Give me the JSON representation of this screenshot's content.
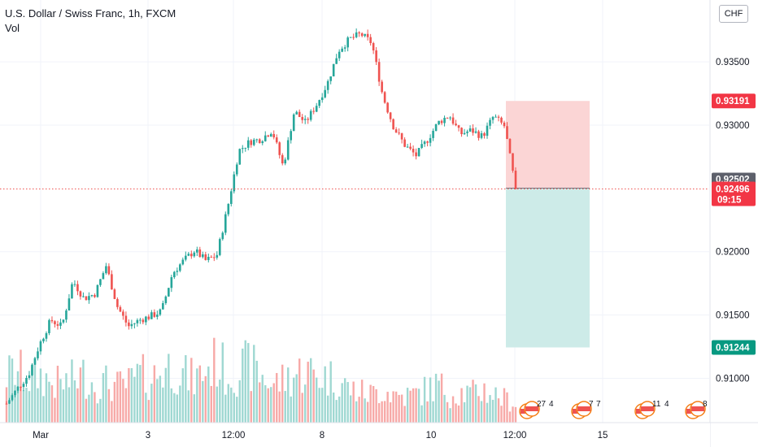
{
  "legend": {
    "title": "U.S. Dollar / Swiss Franc, 1h, FXCM",
    "volume_label": "Vol"
  },
  "currency_button": "CHF",
  "colors": {
    "up": "#26a69a",
    "down": "#ef5350",
    "vol_up": "#9fd8d2",
    "vol_down": "#f7a9a7",
    "stop_zone": "#fbd5d5",
    "target_zone": "#cdebe8",
    "stop_tag": "#f23645",
    "target_tag": "#089981",
    "entry_tag": "#5d606b",
    "grid": "#f0f3fa"
  },
  "chart_data": {
    "type": "candlestick",
    "symbol": "USDCHF",
    "timeframe": "1h",
    "x_tick_labels": [
      "Mar",
      "3",
      "12:00",
      "8",
      "10",
      "12:00",
      "15"
    ],
    "y_tick_labels": [
      "0.93500",
      "0.93000",
      "0.92000",
      "0.91500",
      "0.91000"
    ],
    "ylim": [
      0.9065,
      0.9395
    ],
    "price_path": [
      0.908,
      0.9092,
      0.9103,
      0.9127,
      0.9146,
      0.9141,
      0.9177,
      0.9163,
      0.9167,
      0.9189,
      0.9157,
      0.9141,
      0.9146,
      0.9149,
      0.9153,
      0.9183,
      0.9193,
      0.9201,
      0.9193,
      0.9197,
      0.9236,
      0.928,
      0.9287,
      0.9289,
      0.9296,
      0.9267,
      0.9311,
      0.9302,
      0.9316,
      0.9333,
      0.9359,
      0.9368,
      0.9372,
      0.9365,
      0.9323,
      0.9298,
      0.9284,
      0.9276,
      0.9288,
      0.9302,
      0.9308,
      0.9293,
      0.9296,
      0.9291,
      0.9307,
      0.9299,
      0.92496
    ],
    "volume_profile": [
      0.5,
      0.55,
      0.45,
      0.5,
      0.42,
      0.4,
      0.45,
      0.5,
      0.4,
      0.42,
      0.38,
      0.4,
      0.5,
      0.45,
      0.55,
      0.6,
      0.5,
      0.45,
      0.55,
      0.65,
      0.5,
      0.55,
      0.6,
      0.5,
      0.4,
      0.45,
      0.5,
      0.55,
      0.5,
      0.48,
      0.45,
      0.35,
      0.32,
      0.3,
      0.35,
      0.3,
      0.28,
      0.3,
      0.35,
      0.4,
      0.3,
      0.32,
      0.3,
      0.35,
      0.3,
      0.25,
      0.2
    ],
    "last_price": "0.92496",
    "countdown": "09:15",
    "position": {
      "entry": "0.92502",
      "stop": "0.93191",
      "target": "0.91244"
    },
    "event_markers": [
      {
        "label": "27",
        "sub": "4"
      },
      {
        "label": "7",
        "sub": "7"
      },
      {
        "label": "11",
        "sub": "4"
      },
      {
        "label": "8",
        "sub": ""
      }
    ]
  }
}
